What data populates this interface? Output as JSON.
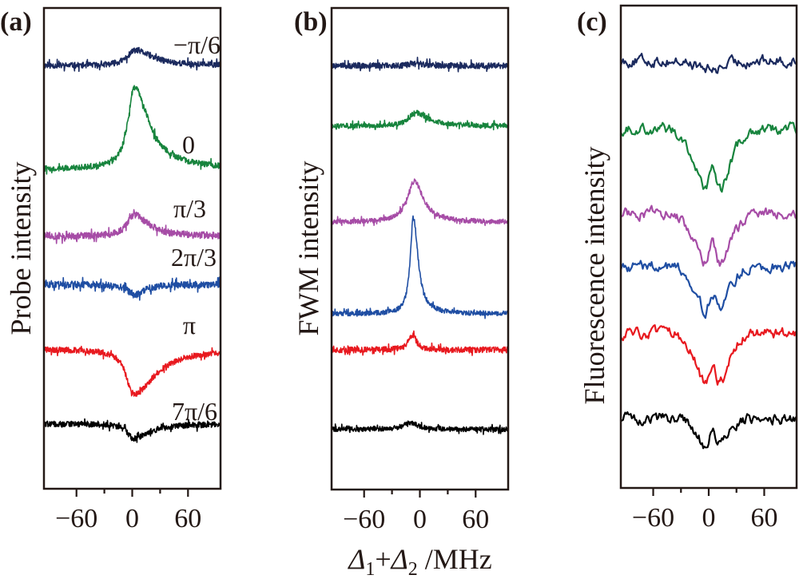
{
  "figure": {
    "xlabel_parts": [
      "Δ",
      "1",
      "+Δ",
      "2",
      " /MHz"
    ],
    "xlabel": "Δ1+Δ2 /MHz"
  },
  "chart_data": [
    {
      "type": "line",
      "panel": "(a)",
      "title": "",
      "ylabel": "Probe intensity",
      "xlabel": "",
      "xlim": [
        -95,
        95
      ],
      "xticks": [
        -60,
        -30,
        0,
        30,
        60
      ],
      "xtick_labels": [
        "−60",
        "",
        "0",
        "",
        "60"
      ],
      "y_offsets_normalized": true,
      "series": [
        {
          "name": "−π/6",
          "color": "#1b2a5e",
          "baseline": 0.88,
          "shape": "peak",
          "amp": 0.032,
          "center": 3,
          "width": 10,
          "asym": 2.2,
          "noise": 0.006
        },
        {
          "name": "0",
          "color": "#17843d",
          "baseline": 0.665,
          "shape": "peak",
          "amp": 0.17,
          "center": 2,
          "width": 8,
          "asym": 2.4,
          "noise": 0.006
        },
        {
          "name": "π/3",
          "color": "#a64ca6",
          "baseline": 0.525,
          "shape": "peak",
          "amp": 0.045,
          "center": 2,
          "width": 9,
          "asym": 2.0,
          "noise": 0.007
        },
        {
          "name": "2π/3",
          "color": "#1f4ea3",
          "baseline": 0.425,
          "shape": "dip",
          "amp": -0.022,
          "center": 2,
          "width": 8,
          "asym": 1.6,
          "noise": 0.007
        },
        {
          "name": "π",
          "color": "#e8191f",
          "baseline": 0.29,
          "shape": "dip",
          "amp": -0.095,
          "center": 1,
          "width": 9,
          "asym": 3.0,
          "noise": 0.006
        },
        {
          "name": "7π/6",
          "color": "#000000",
          "baseline": 0.135,
          "shape": "dip",
          "amp": -0.03,
          "center": 1,
          "width": 8,
          "asym": 2.5,
          "noise": 0.006
        }
      ],
      "trace_labels": [
        "−π/6",
        "0",
        "π/3",
        "2π/3",
        "π",
        "7π/6"
      ]
    },
    {
      "type": "line",
      "panel": "(b)",
      "title": "",
      "ylabel": "FWM intensity",
      "xlabel": "Δ1+Δ2 /MHz",
      "xlim": [
        -95,
        95
      ],
      "xticks": [
        -60,
        -30,
        0,
        30,
        60
      ],
      "xtick_labels": [
        "−60",
        "",
        "0",
        "",
        "60"
      ],
      "series": [
        {
          "name": "−π/6",
          "color": "#1b2a5e",
          "baseline": 0.88,
          "shape": "peak",
          "amp": 0.006,
          "center": -5,
          "width": 6,
          "asym": 1.5,
          "noise": 0.006
        },
        {
          "name": "0",
          "color": "#17843d",
          "baseline": 0.755,
          "shape": "peak",
          "amp": 0.028,
          "center": -5,
          "width": 8,
          "asym": 2.0,
          "noise": 0.005
        },
        {
          "name": "π/3",
          "color": "#a64ca6",
          "baseline": 0.555,
          "shape": "peak",
          "amp": 0.085,
          "center": -6,
          "width": 9,
          "asym": 1.3,
          "noise": 0.005
        },
        {
          "name": "2π/3",
          "color": "#1f4ea3",
          "baseline": 0.365,
          "shape": "peak",
          "amp": 0.2,
          "center": -7,
          "width": 4,
          "asym": 1.5,
          "noise": 0.005
        },
        {
          "name": "π",
          "color": "#e8191f",
          "baseline": 0.29,
          "shape": "peak",
          "amp": 0.032,
          "center": -8,
          "width": 5,
          "asym": 1.0,
          "noise": 0.006
        },
        {
          "name": "7π/6",
          "color": "#000000",
          "baseline": 0.125,
          "shape": "peak",
          "amp": 0.014,
          "center": -10,
          "width": 9,
          "asym": 1.0,
          "noise": 0.005
        }
      ]
    },
    {
      "type": "line",
      "panel": "(c)",
      "title": "",
      "ylabel": "Fluorescence intensity",
      "xlabel": "",
      "xlim": [
        -95,
        95
      ],
      "xticks": [
        -60,
        -30,
        0,
        30,
        60
      ],
      "xtick_labels": [
        "−60",
        "",
        "0",
        "",
        "60"
      ],
      "series": [
        {
          "name": "−π/6",
          "color": "#1b2a5e",
          "baseline": 0.885,
          "shape": "double-dip",
          "amp": -0.018,
          "center": 2,
          "width": 14,
          "split": 0,
          "noise": 0.008
        },
        {
          "name": "0",
          "color": "#17843d",
          "baseline": 0.745,
          "shape": "double-dip",
          "amp": -0.12,
          "center": 4,
          "width": 10,
          "split": 18,
          "noise": 0.008
        },
        {
          "name": "π/3",
          "color": "#a64ca6",
          "baseline": 0.57,
          "shape": "double-dip",
          "amp": -0.1,
          "center": 4,
          "width": 10,
          "split": 18,
          "noise": 0.008
        },
        {
          "name": "2π/3",
          "color": "#1f4ea3",
          "baseline": 0.46,
          "shape": "double-dip",
          "amp": -0.09,
          "center": 4,
          "width": 9,
          "split": 18,
          "noise": 0.008
        },
        {
          "name": "π",
          "color": "#e8191f",
          "baseline": 0.32,
          "shape": "double-dip",
          "amp": -0.1,
          "center": 4,
          "width": 9,
          "split": 20,
          "noise": 0.008
        },
        {
          "name": "7π/6",
          "color": "#000000",
          "baseline": 0.145,
          "shape": "double-dip",
          "amp": -0.055,
          "center": 4,
          "width": 9,
          "split": 18,
          "noise": 0.008
        }
      ]
    }
  ]
}
